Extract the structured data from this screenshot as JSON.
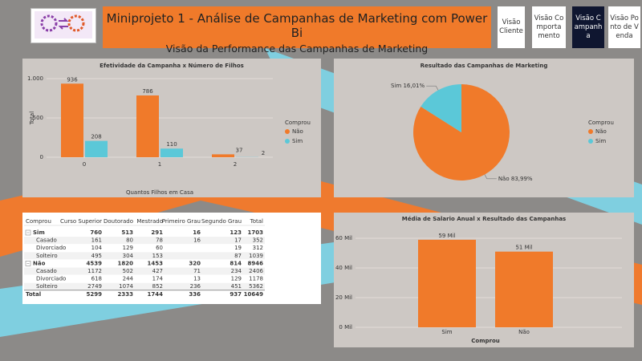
{
  "header": {
    "title": "Miniprojeto 1 - Análise de Campanhas de Marketing com Power Bi",
    "subtitle": "Visão da Performance das Campanhas de Marketing"
  },
  "nav": [
    "Visão Cliente",
    "Visão Comportamento",
    "Visão Campanha",
    "Visão Ponto de Venda"
  ],
  "chart_data": [
    {
      "type": "bar",
      "title": "Efetividade da Campanha x Número de Filhos",
      "x_label": "Quantos Filhos em Casa",
      "y_label": "Total",
      "categories": [
        "0",
        "1",
        "2"
      ],
      "series": [
        {
          "name": "Não",
          "color": "#f07a2a",
          "values": [
            936,
            786,
            37
          ]
        },
        {
          "name": "Sim",
          "color": "#5bc8d8",
          "values": [
            208,
            110,
            2
          ]
        }
      ],
      "ylim": [
        0,
        1000
      ],
      "yticks": [
        0,
        500,
        {
          "value": 1000,
          "label": "1.000"
        }
      ],
      "grid": true,
      "legend_title": "Comprou",
      "legend": "right"
    },
    {
      "type": "pie",
      "title": "Resultado das Campanhas de Marketing",
      "categories": [
        "Não",
        "Sim"
      ],
      "values": [
        83.99,
        16.01
      ],
      "value_labels": [
        "83,99%",
        "16,01%"
      ],
      "colors": [
        "#f07a2a",
        "#5bc8d8"
      ],
      "legend_title": "Comprou",
      "legend": "right"
    },
    {
      "type": "bar",
      "title": "Média de Salario Anual x Resultado das Campanhas",
      "x_label": "Comprou",
      "categories": [
        "Sim",
        "Não"
      ],
      "values": [
        59000,
        51000
      ],
      "value_labels": [
        "59 Mil",
        "51 Mil"
      ],
      "color": "#f07a2a",
      "ylim": [
        0,
        60000
      ],
      "yticks": [
        {
          "value": 0,
          "label": "0 Mil"
        },
        {
          "value": 20000,
          "label": "20 Mil"
        },
        {
          "value": 40000,
          "label": "40 Mil"
        },
        {
          "value": 60000,
          "label": "60 Mil"
        }
      ],
      "grid": true
    }
  ],
  "table": {
    "columns": [
      "Comprou",
      "Curso Superior",
      "Doutorado",
      "Mestrado",
      "Primeiro Grau",
      "Segundo Grau",
      "Total"
    ],
    "groups": [
      {
        "row": [
          "Sim",
          760,
          513,
          291,
          16,
          123,
          1703
        ],
        "children": [
          [
            "Casado",
            161,
            80,
            78,
            16,
            17,
            352
          ],
          [
            "Divorciado",
            104,
            129,
            60,
            null,
            19,
            312
          ],
          [
            "Solteiro",
            495,
            304,
            153,
            null,
            87,
            1039
          ]
        ]
      },
      {
        "row": [
          "Não",
          4539,
          1820,
          1453,
          320,
          814,
          8946
        ],
        "children": [
          [
            "Casado",
            1172,
            502,
            427,
            71,
            234,
            2406
          ],
          [
            "Divorciado",
            618,
            244,
            174,
            13,
            129,
            1178
          ],
          [
            "Solteiro",
            2749,
            1074,
            852,
            236,
            451,
            5362
          ]
        ]
      }
    ],
    "total": [
      "Total",
      5299,
      2333,
      1744,
      336,
      937,
      10649
    ]
  }
}
